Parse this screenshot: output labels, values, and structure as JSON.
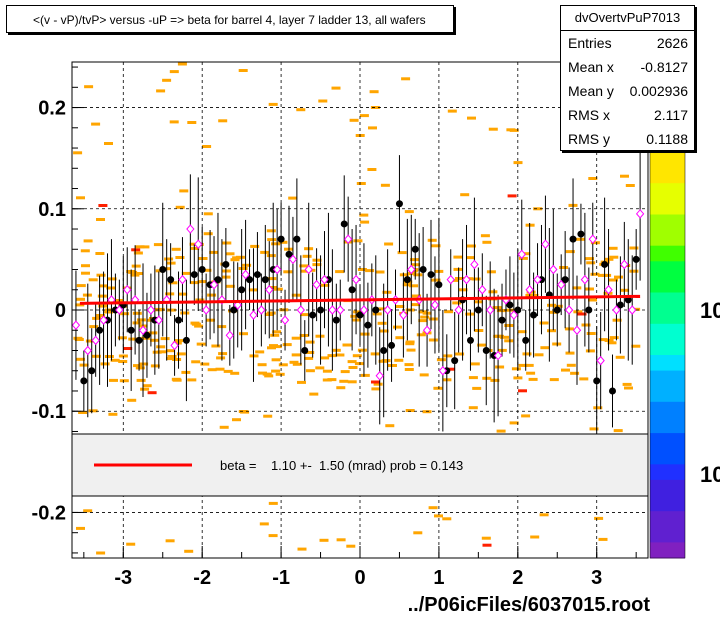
{
  "plot_title": "<(v - vP)/tvP> versus  -uP => beta for barrel 4, layer 7 ladder 13, all wafers",
  "stats": {
    "name": "dvOvertvPuP7013",
    "rows": [
      {
        "label": "Entries",
        "value": "2626"
      },
      {
        "label": "Mean x",
        "value": "-0.8127"
      },
      {
        "label": "Mean y",
        "value": "0.002936"
      },
      {
        "label": "RMS x",
        "value": "2.117"
      },
      {
        "label": "RMS y",
        "value": "0.1188"
      }
    ]
  },
  "fit_legend": "beta =    1.10 +-  1.50 (mrad) prob = 0.143",
  "footer": "../P06icFiles/6037015.root",
  "z_tick_labels": [
    "10",
    "10"
  ],
  "colors": {
    "fit_line": "#ff0000",
    "background_hist": "#ffa500",
    "profile_black": "#000000",
    "profile_magenta": "#ff00ff"
  },
  "chart_data": {
    "type": "scatter",
    "title": "<(v - vP)/tvP> versus  -uP => beta for barrel 4, layer 7 ladder 13, all wafers",
    "xlim": [
      -3.65,
      3.65
    ],
    "ylim": [
      -0.245,
      0.245
    ],
    "x_ticks": [
      -3,
      -2,
      -1,
      0,
      1,
      2,
      3
    ],
    "x_tick_labels": [
      "-3",
      "-2",
      "-1",
      "0",
      "1",
      "2",
      "3"
    ],
    "y_ticks": [
      -0.2,
      -0.1,
      0,
      0.1,
      0.2
    ],
    "y_tick_labels": [
      "-0.2",
      "-0.1",
      "0",
      "0.1",
      "0.2"
    ],
    "grid": true,
    "fit_line": {
      "x": [
        -3.55,
        3.55
      ],
      "y": [
        0.0065,
        0.0135
      ]
    },
    "series": [
      {
        "marker": "filled-circle",
        "color": "#000000",
        "x": [
          -3.5,
          -3.4,
          -3.3,
          -3.2,
          -3.1,
          -3.0,
          -2.9,
          -2.8,
          -2.7,
          -2.6,
          -2.5,
          -2.4,
          -2.3,
          -2.2,
          -2.1,
          -2.0,
          -1.9,
          -1.8,
          -1.7,
          -1.6,
          -1.5,
          -1.4,
          -1.3,
          -1.2,
          -1.1,
          -1.0,
          -0.9,
          -0.8,
          -0.7,
          -0.6,
          -0.5,
          -0.4,
          -0.3,
          -0.2,
          -0.1,
          0.0,
          0.1,
          0.2,
          0.3,
          0.4,
          0.5,
          0.6,
          0.7,
          0.8,
          0.9,
          1.0,
          1.1,
          1.2,
          1.3,
          1.4,
          1.5,
          1.6,
          1.7,
          1.8,
          1.9,
          2.0,
          2.1,
          2.2,
          2.3,
          2.4,
          2.5,
          2.6,
          2.7,
          2.8,
          2.9,
          3.0,
          3.1,
          3.2,
          3.3,
          3.4,
          3.5
        ],
        "y": [
          -0.07,
          -0.06,
          -0.02,
          -0.01,
          0.0,
          0.005,
          -0.02,
          -0.03,
          -0.025,
          -0.01,
          0.04,
          0.03,
          -0.01,
          -0.03,
          0.035,
          0.04,
          0.025,
          0.03,
          0.045,
          0.0,
          0.02,
          0.03,
          0.035,
          0.03,
          0.04,
          0.07,
          0.055,
          0.07,
          -0.04,
          -0.005,
          0.0,
          0.03,
          -0.01,
          0.085,
          0.02,
          -0.005,
          -0.015,
          0.0,
          -0.04,
          -0.035,
          0.105,
          0.03,
          0.06,
          0.04,
          0.035,
          0.025,
          -0.06,
          -0.05,
          0.01,
          -0.03,
          0.0,
          -0.04,
          -0.045,
          -0.01,
          0.005,
          0.0,
          -0.03,
          -0.005,
          0.03,
          0.015,
          0.0,
          0.03,
          0.07,
          0.075,
          0.0,
          -0.07,
          0.045,
          -0.08,
          0.005,
          0.01,
          0.05
        ]
      },
      {
        "marker": "open-diamond",
        "color": "#ff00ff",
        "x": [
          -3.6,
          -3.45,
          -3.35,
          -3.25,
          -3.15,
          -3.05,
          -2.95,
          -2.85,
          -2.75,
          -2.65,
          -2.55,
          -2.45,
          -2.35,
          -2.25,
          -2.15,
          -2.05,
          -1.95,
          -1.85,
          -1.75,
          -1.65,
          -1.55,
          -1.45,
          -1.35,
          -1.25,
          -1.15,
          -1.05,
          -0.95,
          -0.85,
          -0.75,
          -0.65,
          -0.55,
          -0.45,
          -0.35,
          -0.25,
          -0.15,
          -0.05,
          0.05,
          0.15,
          0.25,
          0.35,
          0.45,
          0.55,
          0.65,
          0.75,
          0.85,
          0.95,
          1.05,
          1.15,
          1.25,
          1.35,
          1.45,
          1.55,
          1.65,
          1.75,
          1.85,
          1.95,
          2.05,
          2.15,
          2.25,
          2.35,
          2.45,
          2.55,
          2.65,
          2.75,
          2.85,
          2.95,
          3.05,
          3.15,
          3.25,
          3.35,
          3.45,
          3.55
        ],
        "y": [
          -0.015,
          -0.04,
          -0.03,
          -0.01,
          0.01,
          0.0,
          0.02,
          0.01,
          -0.02,
          0.0,
          -0.01,
          0.01,
          -0.035,
          0.03,
          0.08,
          0.065,
          0.0,
          0.025,
          0.01,
          -0.025,
          0.005,
          0.035,
          -0.005,
          0.0,
          0.02,
          0.04,
          -0.01,
          0.05,
          0.0,
          0.04,
          0.025,
          0.03,
          0.0,
          0.0,
          0.07,
          0.03,
          0.0,
          0.01,
          -0.065,
          0.0,
          0.01,
          -0.005,
          0.04,
          0.01,
          -0.02,
          0.005,
          -0.06,
          0.03,
          0.0,
          0.03,
          0.045,
          0.02,
          0.0,
          -0.045,
          0.01,
          -0.005,
          0.055,
          0.02,
          0.03,
          0.065,
          0.04,
          0.025,
          0.0,
          -0.02,
          0.03,
          0.07,
          -0.05,
          0.02,
          0.0,
          0.045,
          0.0,
          0.095
        ]
      }
    ]
  }
}
